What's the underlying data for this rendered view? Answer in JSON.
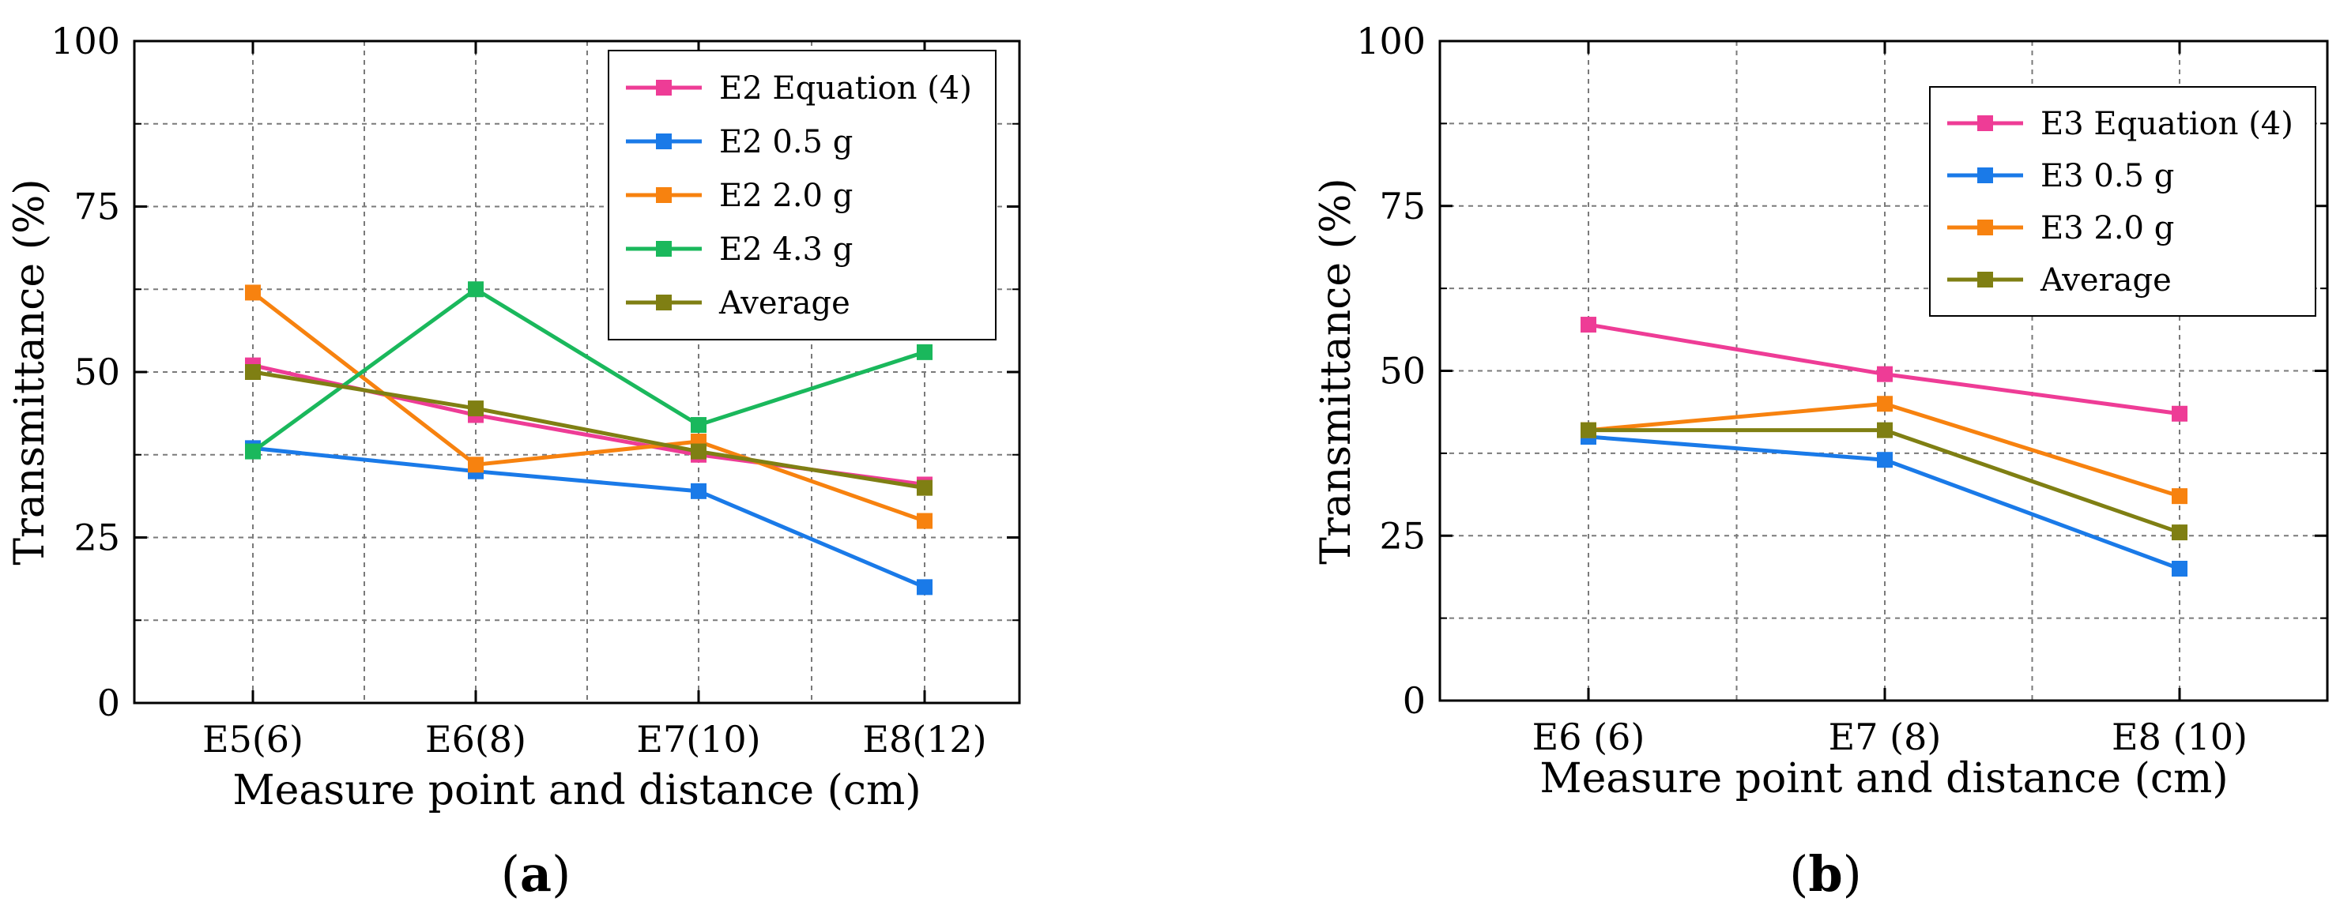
{
  "chart_data": [
    {
      "type": "line",
      "panel_label": "a",
      "xlabel": "Measure point and distance (cm)",
      "ylabel": "Transmittance (%)",
      "categories": [
        "E5(6)",
        "E6(8)",
        "E7(10)",
        "E8(12)"
      ],
      "ylim": [
        0,
        100
      ],
      "yticks": [
        0,
        25,
        50,
        75,
        100
      ],
      "grid": true,
      "legend_position": "top-right",
      "series": [
        {
          "name": "E2 Equation (4)",
          "color": "#ee3c96",
          "values": [
            51,
            43.5,
            37.5,
            33
          ]
        },
        {
          "name": "E2 0.5 g",
          "color": "#1a7ae8",
          "values": [
            38.5,
            35,
            32,
            17.5
          ]
        },
        {
          "name": "E2 2.0 g",
          "color": "#f7820f",
          "values": [
            62,
            36,
            39.5,
            27.5
          ]
        },
        {
          "name": "E2 4.3 g",
          "color": "#1ab85c",
          "values": [
            38,
            62.5,
            42,
            53
          ]
        },
        {
          "name": "Average",
          "color": "#7f7f13",
          "values": [
            50,
            44.5,
            38,
            32.5
          ]
        }
      ]
    },
    {
      "type": "line",
      "panel_label": "b",
      "xlabel": "Measure point and distance (cm)",
      "ylabel": "Transmittance (%)",
      "categories": [
        "E6 (6)",
        "E7 (8)",
        "E8 (10)"
      ],
      "ylim": [
        0,
        100
      ],
      "yticks": [
        0,
        25,
        50,
        75,
        100
      ],
      "grid": true,
      "legend_position": "top-right",
      "series": [
        {
          "name": "E3 Equation (4)",
          "color": "#ee3c96",
          "values": [
            57,
            49.5,
            43.5
          ]
        },
        {
          "name": "E3 0.5 g",
          "color": "#1a7ae8",
          "values": [
            40,
            36.5,
            20
          ]
        },
        {
          "name": "E3 2.0 g",
          "color": "#f7820f",
          "values": [
            41,
            45,
            31
          ]
        },
        {
          "name": "Average",
          "color": "#7f7f13",
          "values": [
            41,
            41,
            25.5
          ]
        }
      ]
    }
  ]
}
